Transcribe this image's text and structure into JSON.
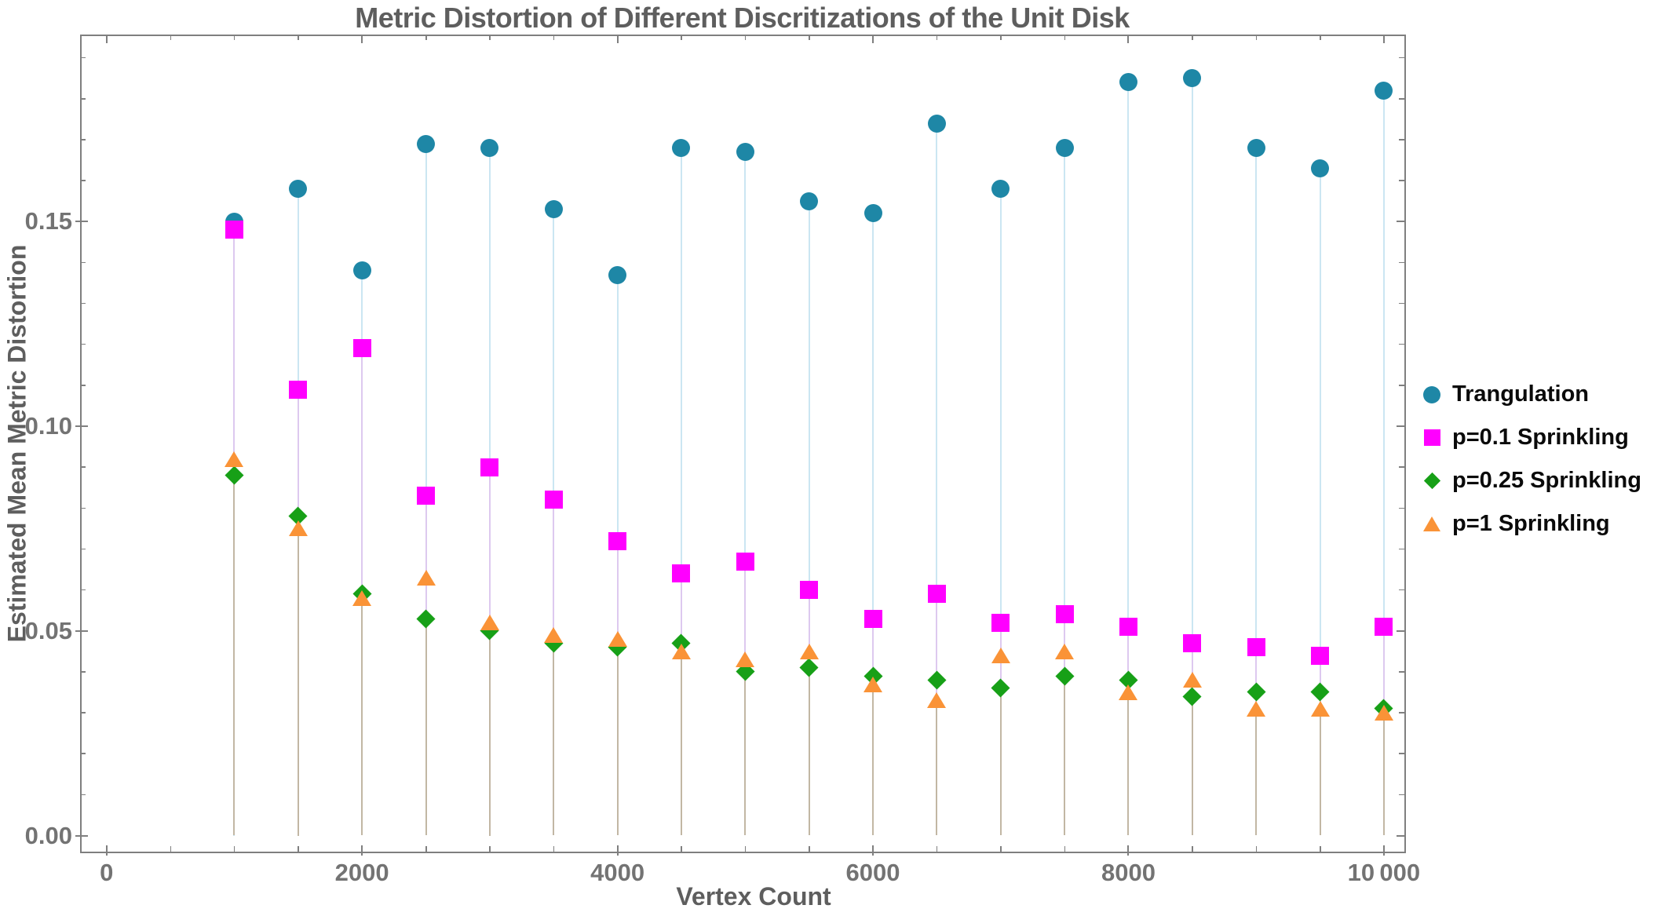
{
  "title": "Metric Distortion of Different Discritizations of the Unit Disk",
  "chart_data": {
    "type": "scatter",
    "subtype": "stem-scatter",
    "title": "Metric Distortion of Different Discritizations of the Unit Disk",
    "xlabel": "Vertex Count",
    "ylabel": "Estimated Mean Metric Distortion",
    "xlim": [
      -210,
      10160
    ],
    "ylim": [
      -0.004,
      0.1957
    ],
    "grid": false,
    "legend_position": "right-outside",
    "x": [
      1000,
      1500,
      2000,
      2500,
      3000,
      3500,
      4000,
      4500,
      5000,
      5500,
      6000,
      6500,
      7000,
      7500,
      8000,
      8500,
      9000,
      9500,
      10000
    ],
    "series": [
      {
        "name": "Trangulation",
        "marker": "circle",
        "color": "#1e87a6",
        "values": [
          0.15,
          0.158,
          0.138,
          0.169,
          0.168,
          0.153,
          0.137,
          0.168,
          0.167,
          0.155,
          0.152,
          0.174,
          0.158,
          0.168,
          0.184,
          0.185,
          0.168,
          0.163,
          0.182
        ]
      },
      {
        "name": "p=0.1 Sprinkling",
        "marker": "square",
        "color": "#ff00ff",
        "values": [
          0.148,
          0.109,
          0.119,
          0.083,
          0.09,
          0.082,
          0.072,
          0.064,
          0.067,
          0.06,
          0.053,
          0.059,
          0.052,
          0.054,
          0.051,
          0.047,
          0.046,
          0.044,
          0.051
        ]
      },
      {
        "name": "p=0.25 Sprinkling",
        "marker": "diamond",
        "color": "#17a017",
        "values": [
          0.088,
          0.078,
          0.059,
          0.053,
          0.05,
          0.047,
          0.046,
          0.047,
          0.04,
          0.041,
          0.039,
          0.038,
          0.036,
          0.039,
          0.038,
          0.034,
          0.035,
          0.035,
          0.031
        ]
      },
      {
        "name": "p=1 Sprinkling",
        "marker": "triangle",
        "color": "#fa9337",
        "values": [
          0.092,
          0.075,
          0.058,
          0.063,
          0.052,
          0.049,
          0.048,
          0.045,
          0.043,
          0.045,
          0.037,
          0.033,
          0.044,
          0.045,
          0.035,
          0.038,
          0.031,
          0.031,
          0.03
        ]
      }
    ],
    "xticks": {
      "major": [
        0,
        2000,
        4000,
        6000,
        8000,
        10000
      ],
      "labels": [
        "0",
        "2000",
        "4000",
        "6000",
        "8000",
        "10 000"
      ],
      "minor_step": 500
    },
    "yticks": {
      "major": [
        0,
        0.05,
        0.1,
        0.15
      ],
      "labels": [
        "0.00",
        "0.05",
        "0.10",
        "0.15"
      ],
      "minor_step": 0.01,
      "minor_max": 0.19
    },
    "stem_colors": {
      "to_circle": "#cbe6f2",
      "to_square": "#ddc9ef",
      "to_lowest": "#c2b7a4"
    },
    "frame_color": "#7f7f7f",
    "title_color": "#5e5e5e",
    "tick_label_color": "#737373"
  }
}
